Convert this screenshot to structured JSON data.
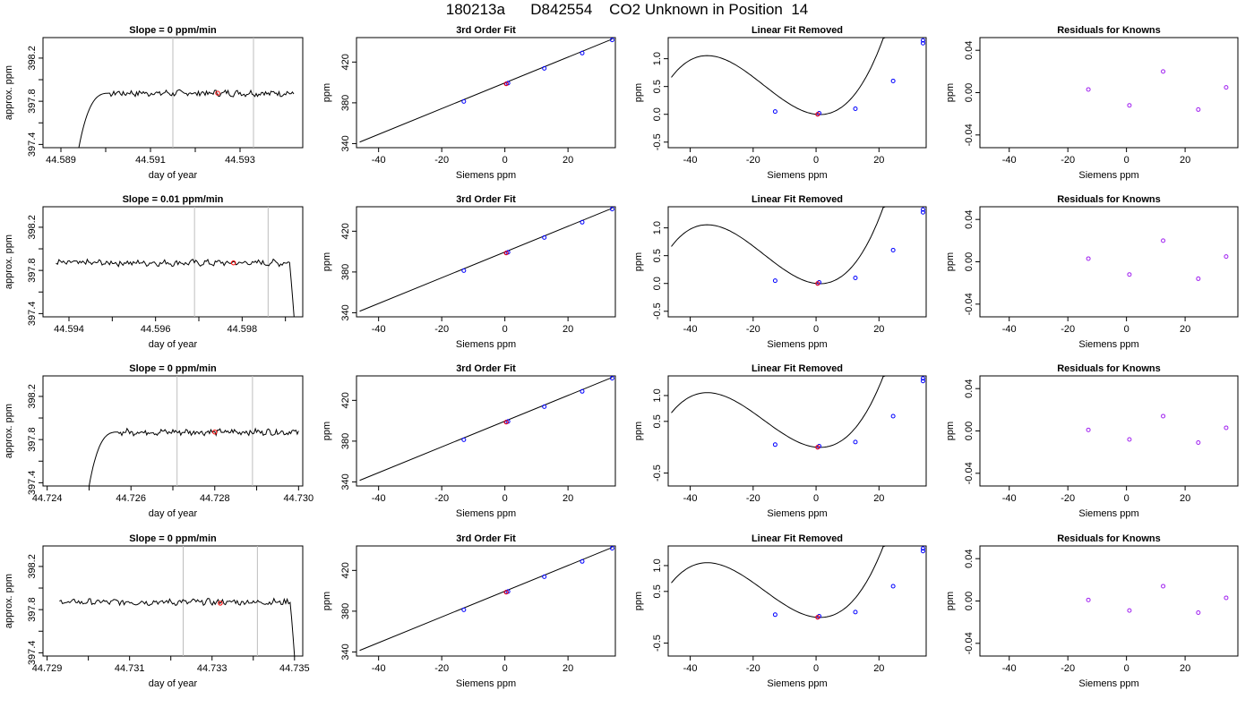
{
  "figure": {
    "title": "180213a      D842554    CO2 Unknown in Position  14"
  },
  "colors": {
    "trace": "#000000",
    "marker_vline": "#bebebe",
    "known_points": "#0000ff",
    "unknown_points": "#ff0000",
    "residual_points": "#a020f0"
  },
  "chart_data": [
    {
      "type": "line",
      "row": 0,
      "panel": "timeseries",
      "title": "Slope =  0  ppm/min",
      "xlabel": "day of year",
      "ylabel": "approx. ppm",
      "xlim": [
        44.5886,
        44.5944
      ],
      "ylim": [
        397.37,
        398.39
      ],
      "xticks": [
        44.589,
        44.59,
        44.591,
        44.592,
        44.593
      ],
      "xticklabels": [
        "44.589",
        "",
        "44.591",
        "",
        "44.593"
      ],
      "yticks": [
        397.4,
        397.6,
        397.8,
        398.0,
        398.2
      ],
      "yticklabels": [
        "397.4",
        "",
        "397.8",
        "",
        "398.2"
      ],
      "vlines": [
        44.5915,
        44.5933
      ],
      "avg_point": {
        "x": 44.5925,
        "y": 397.875
      },
      "trace": {
        "x_start": 44.5894,
        "x_end": 44.5942,
        "rise_end": 44.5901,
        "level": 397.875,
        "start_value": 397.37,
        "end_value": 397.87,
        "shape": "rise"
      }
    },
    {
      "type": "scatter",
      "row": 0,
      "panel": "fit",
      "title": "3rd Order Fit",
      "xlabel": "Siemens ppm",
      "ylabel": "ppm",
      "xlim": [
        -47,
        35
      ],
      "ylim": [
        336,
        444
      ],
      "xticks": [
        -40,
        -20,
        0,
        20
      ],
      "yticks": [
        340,
        380,
        420
      ],
      "fit_line": {
        "x": [
          -46,
          34
        ],
        "y": [
          341.5,
          442.5
        ]
      },
      "knowns": {
        "x": [
          -13,
          0.5,
          1,
          12.5,
          24.5,
          34
        ],
        "y": [
          381.3,
          398.8,
          399.3,
          413.8,
          428.8,
          441.7
        ]
      },
      "unknown": {
        "x": [
          0.4
        ],
        "y": [
          398.6
        ]
      }
    },
    {
      "type": "line",
      "row": 0,
      "panel": "linearfit",
      "title": "Linear Fit Removed",
      "xlabel": "Siemens ppm",
      "ylabel": "ppm",
      "xlim": [
        -47,
        35
      ],
      "ylim": [
        -0.6,
        1.38
      ],
      "xticks": [
        -40,
        -20,
        0,
        20
      ],
      "yticks": [
        -0.5,
        0.0,
        0.5,
        1.0
      ],
      "yticklabels": [
        "-0.5",
        "0.0",
        "0.5",
        "1.0"
      ],
      "cubic": [
        0.0,
        -0.006,
        0.0023,
        4.6e-05
      ],
      "curve_x_range": [
        -46,
        34
      ],
      "knowns": {
        "x": [
          -13,
          0.5,
          1,
          12.5,
          24.5,
          34,
          34
        ],
        "y": [
          0.05,
          0.0,
          0.02,
          0.1,
          0.6,
          1.28,
          1.33
        ]
      },
      "unknown": {
        "x": [
          0.5
        ],
        "y": [
          0.0
        ]
      }
    },
    {
      "type": "scatter",
      "row": 0,
      "panel": "residuals",
      "title": "Residuals for Knowns",
      "xlabel": "Siemens ppm",
      "ylabel": "ppm",
      "xlim": [
        -50,
        38
      ],
      "ylim": [
        -0.052,
        0.052
      ],
      "xticks": [
        -40,
        -20,
        0,
        20
      ],
      "yticks": [
        -0.04,
        0.0,
        0.04
      ],
      "yticklabels": [
        "-0.04",
        "0.00",
        "0.04"
      ],
      "points": {
        "x": [
          -13,
          1,
          12.5,
          24.5,
          34
        ],
        "y": [
          0.003,
          -0.012,
          0.02,
          -0.016,
          0.005
        ]
      }
    },
    {
      "type": "line",
      "row": 1,
      "panel": "timeseries",
      "title": "Slope =  0.01  ppm/min",
      "xlabel": "day of year",
      "ylabel": "approx. ppm",
      "xlim": [
        44.5934,
        44.5994
      ],
      "ylim": [
        397.37,
        398.39
      ],
      "xticks": [
        44.594,
        44.595,
        44.596,
        44.597,
        44.598,
        44.599
      ],
      "xticklabels": [
        "44.594",
        "",
        "44.596",
        "",
        "44.598",
        ""
      ],
      "yticks": [
        397.4,
        397.6,
        397.8,
        398.0,
        398.2
      ],
      "yticklabels": [
        "397.4",
        "",
        "397.8",
        "",
        "398.2"
      ],
      "vlines": [
        44.5969,
        44.5986
      ],
      "avg_point": {
        "x": 44.5978,
        "y": 397.87
      },
      "trace": {
        "x_start": 44.5937,
        "x_end": 44.5992,
        "drop_start": 44.5991,
        "level": 397.87,
        "start_value": 397.86,
        "end_value": 397.37,
        "shape": "drop"
      }
    },
    {
      "type": "scatter",
      "row": 1,
      "panel": "fit",
      "title": "3rd Order Fit",
      "xlabel": "Siemens ppm",
      "ylabel": "ppm",
      "xlim": [
        -47,
        35
      ],
      "ylim": [
        336,
        444
      ],
      "xticks": [
        -40,
        -20,
        0,
        20
      ],
      "yticks": [
        340,
        380,
        420
      ],
      "fit_line": {
        "x": [
          -46,
          34
        ],
        "y": [
          341.5,
          442.5
        ]
      },
      "knowns": {
        "x": [
          -13,
          0.5,
          1,
          12.5,
          24.5,
          34
        ],
        "y": [
          381.3,
          398.8,
          399.3,
          413.8,
          428.8,
          441.7
        ]
      },
      "unknown": {
        "x": [
          0.4
        ],
        "y": [
          398.6
        ]
      }
    },
    {
      "type": "line",
      "row": 1,
      "panel": "linearfit",
      "title": "Linear Fit Removed",
      "xlabel": "Siemens ppm",
      "ylabel": "ppm",
      "xlim": [
        -47,
        35
      ],
      "ylim": [
        -0.6,
        1.38
      ],
      "xticks": [
        -40,
        -20,
        0,
        20
      ],
      "yticks": [
        -0.5,
        0.0,
        0.5,
        1.0
      ],
      "yticklabels": [
        "-0.5",
        "0.0",
        "0.5",
        "1.0"
      ],
      "cubic": [
        0.0,
        -0.006,
        0.0023,
        4.6e-05
      ],
      "curve_x_range": [
        -46,
        34
      ],
      "knowns": {
        "x": [
          -13,
          0.5,
          1,
          12.5,
          24.5,
          34,
          34
        ],
        "y": [
          0.05,
          0.0,
          0.02,
          0.1,
          0.6,
          1.28,
          1.33
        ]
      },
      "unknown": {
        "x": [
          0.5
        ],
        "y": [
          0.0
        ]
      }
    },
    {
      "type": "scatter",
      "row": 1,
      "panel": "residuals",
      "title": "Residuals for Knowns",
      "xlabel": "Siemens ppm",
      "ylabel": "ppm",
      "xlim": [
        -50,
        38
      ],
      "ylim": [
        -0.052,
        0.052
      ],
      "xticks": [
        -40,
        -20,
        0,
        20
      ],
      "yticks": [
        -0.04,
        0.0,
        0.04
      ],
      "yticklabels": [
        "-0.04",
        "0.00",
        "0.04"
      ],
      "points": {
        "x": [
          -13,
          1,
          12.5,
          24.5,
          34
        ],
        "y": [
          0.003,
          -0.012,
          0.02,
          -0.016,
          0.005
        ]
      }
    },
    {
      "type": "line",
      "row": 2,
      "panel": "timeseries",
      "title": "Slope =  0  ppm/min",
      "xlabel": "day of year",
      "ylabel": "approx. ppm",
      "xlim": [
        44.7239,
        44.7301
      ],
      "ylim": [
        397.37,
        398.39
      ],
      "xticks": [
        44.724,
        44.725,
        44.726,
        44.727,
        44.728,
        44.729,
        44.73
      ],
      "xticklabels": [
        "44.724",
        "",
        "44.726",
        "",
        "44.728",
        "",
        "44.730"
      ],
      "yticks": [
        397.4,
        397.6,
        397.8,
        398.0,
        398.2
      ],
      "yticklabels": [
        "397.4",
        "",
        "397.8",
        "",
        "398.2"
      ],
      "vlines": [
        44.7271,
        44.7289
      ],
      "avg_point": {
        "x": 44.728,
        "y": 397.87
      },
      "trace": {
        "x_start": 44.725,
        "x_end": 44.73,
        "rise_end": 44.7257,
        "level": 397.87,
        "start_value": 397.37,
        "end_value": 397.87,
        "shape": "rise"
      }
    },
    {
      "type": "scatter",
      "row": 2,
      "panel": "fit",
      "title": "3rd Order Fit",
      "xlabel": "Siemens ppm",
      "ylabel": "ppm",
      "xlim": [
        -47,
        35
      ],
      "ylim": [
        336,
        444
      ],
      "xticks": [
        -40,
        -20,
        0,
        20
      ],
      "yticks": [
        340,
        380,
        420
      ],
      "fit_line": {
        "x": [
          -46,
          34
        ],
        "y": [
          341.5,
          442.5
        ]
      },
      "knowns": {
        "x": [
          -13,
          0.5,
          1,
          12.5,
          24.5,
          34
        ],
        "y": [
          381.3,
          398.8,
          399.3,
          413.8,
          428.8,
          441.7
        ]
      },
      "unknown": {
        "x": [
          0.4
        ],
        "y": [
          398.6
        ]
      }
    },
    {
      "type": "line",
      "row": 2,
      "panel": "linearfit",
      "title": "Linear Fit Removed",
      "xlabel": "Siemens ppm",
      "ylabel": "ppm",
      "xlim": [
        -47,
        35
      ],
      "ylim": [
        -0.75,
        1.38
      ],
      "xticks": [
        -40,
        -20,
        0,
        20
      ],
      "yticks": [
        -0.5,
        0.5,
        1.0
      ],
      "yticklabels": [
        "-0.5",
        "0.5",
        "1.0"
      ],
      "cubic": [
        0.0,
        -0.006,
        0.0023,
        4.6e-05
      ],
      "curve_x_range": [
        -46,
        34
      ],
      "knowns": {
        "x": [
          -13,
          0.5,
          1,
          12.5,
          24.5,
          34,
          34
        ],
        "y": [
          0.05,
          0.0,
          0.02,
          0.1,
          0.6,
          1.28,
          1.33
        ]
      },
      "unknown": {
        "x": [
          0.5
        ],
        "y": [
          0.0
        ]
      }
    },
    {
      "type": "scatter",
      "row": 2,
      "panel": "residuals",
      "title": "Residuals for Knowns",
      "xlabel": "Siemens ppm",
      "ylabel": "ppm",
      "xlim": [
        -50,
        38
      ],
      "ylim": [
        -0.052,
        0.052
      ],
      "xticks": [
        -40,
        -20,
        0,
        20
      ],
      "yticks": [
        -0.04,
        0.0,
        0.04
      ],
      "yticklabels": [
        "-0.04",
        "0.00",
        "0.04"
      ],
      "points": {
        "x": [
          -13,
          1,
          12.5,
          24.5,
          34
        ],
        "y": [
          0.001,
          -0.008,
          0.014,
          -0.011,
          0.003
        ]
      }
    },
    {
      "type": "line",
      "row": 3,
      "panel": "timeseries",
      "title": "Slope =  0  ppm/min",
      "xlabel": "day of year",
      "ylabel": "approx. ppm",
      "xlim": [
        44.7289,
        44.7352
      ],
      "ylim": [
        397.37,
        398.39
      ],
      "xticks": [
        44.729,
        44.73,
        44.731,
        44.732,
        44.733,
        44.734,
        44.735
      ],
      "xticklabels": [
        "44.729",
        "",
        "44.731",
        "",
        "44.733",
        "",
        "44.735"
      ],
      "yticks": [
        397.4,
        397.6,
        397.8,
        398.0,
        398.2
      ],
      "yticklabels": [
        "397.4",
        "",
        "397.8",
        "",
        "398.2"
      ],
      "vlines": [
        44.7323,
        44.7341
      ],
      "avg_point": {
        "x": 44.7332,
        "y": 397.86
      },
      "trace": {
        "x_start": 44.7293,
        "x_end": 44.735,
        "drop_start": 44.7349,
        "level": 397.87,
        "start_value": 397.87,
        "end_value": 397.37,
        "shape": "drop"
      }
    },
    {
      "type": "scatter",
      "row": 3,
      "panel": "fit",
      "title": "3rd Order Fit",
      "xlabel": "Siemens ppm",
      "ylabel": "ppm",
      "xlim": [
        -47,
        35
      ],
      "ylim": [
        336,
        444
      ],
      "xticks": [
        -40,
        -20,
        0,
        20
      ],
      "yticks": [
        340,
        380,
        420
      ],
      "fit_line": {
        "x": [
          -46,
          34
        ],
        "y": [
          341.5,
          442.5
        ]
      },
      "knowns": {
        "x": [
          -13,
          0.5,
          1,
          12.5,
          24.5,
          34
        ],
        "y": [
          381.3,
          398.8,
          399.3,
          413.8,
          428.8,
          441.7
        ]
      },
      "unknown": {
        "x": [
          0.4
        ],
        "y": [
          398.6
        ]
      }
    },
    {
      "type": "line",
      "row": 3,
      "panel": "linearfit",
      "title": "Linear Fit Removed",
      "xlabel": "Siemens ppm",
      "ylabel": "ppm",
      "xlim": [
        -47,
        35
      ],
      "ylim": [
        -0.75,
        1.38
      ],
      "xticks": [
        -40,
        -20,
        0,
        20
      ],
      "yticks": [
        -0.5,
        0.5,
        1.0
      ],
      "yticklabels": [
        "-0.5",
        "0.5",
        "1.0"
      ],
      "cubic": [
        0.0,
        -0.006,
        0.0023,
        4.6e-05
      ],
      "curve_x_range": [
        -46,
        34
      ],
      "knowns": {
        "x": [
          -13,
          0.5,
          1,
          12.5,
          24.5,
          34,
          34
        ],
        "y": [
          0.05,
          0.0,
          0.02,
          0.1,
          0.6,
          1.28,
          1.33
        ]
      },
      "unknown": {
        "x": [
          0.5
        ],
        "y": [
          0.0
        ]
      }
    },
    {
      "type": "scatter",
      "row": 3,
      "panel": "residuals",
      "title": "Residuals for Knowns",
      "xlabel": "Siemens ppm",
      "ylabel": "ppm",
      "xlim": [
        -50,
        38
      ],
      "ylim": [
        -0.052,
        0.052
      ],
      "xticks": [
        -40,
        -20,
        0,
        20
      ],
      "yticks": [
        -0.04,
        0.0,
        0.04
      ],
      "yticklabels": [
        "-0.04",
        "0.00",
        "0.04"
      ],
      "points": {
        "x": [
          -13,
          1,
          12.5,
          24.5,
          34
        ],
        "y": [
          0.001,
          -0.009,
          0.014,
          -0.011,
          0.003
        ]
      }
    }
  ]
}
